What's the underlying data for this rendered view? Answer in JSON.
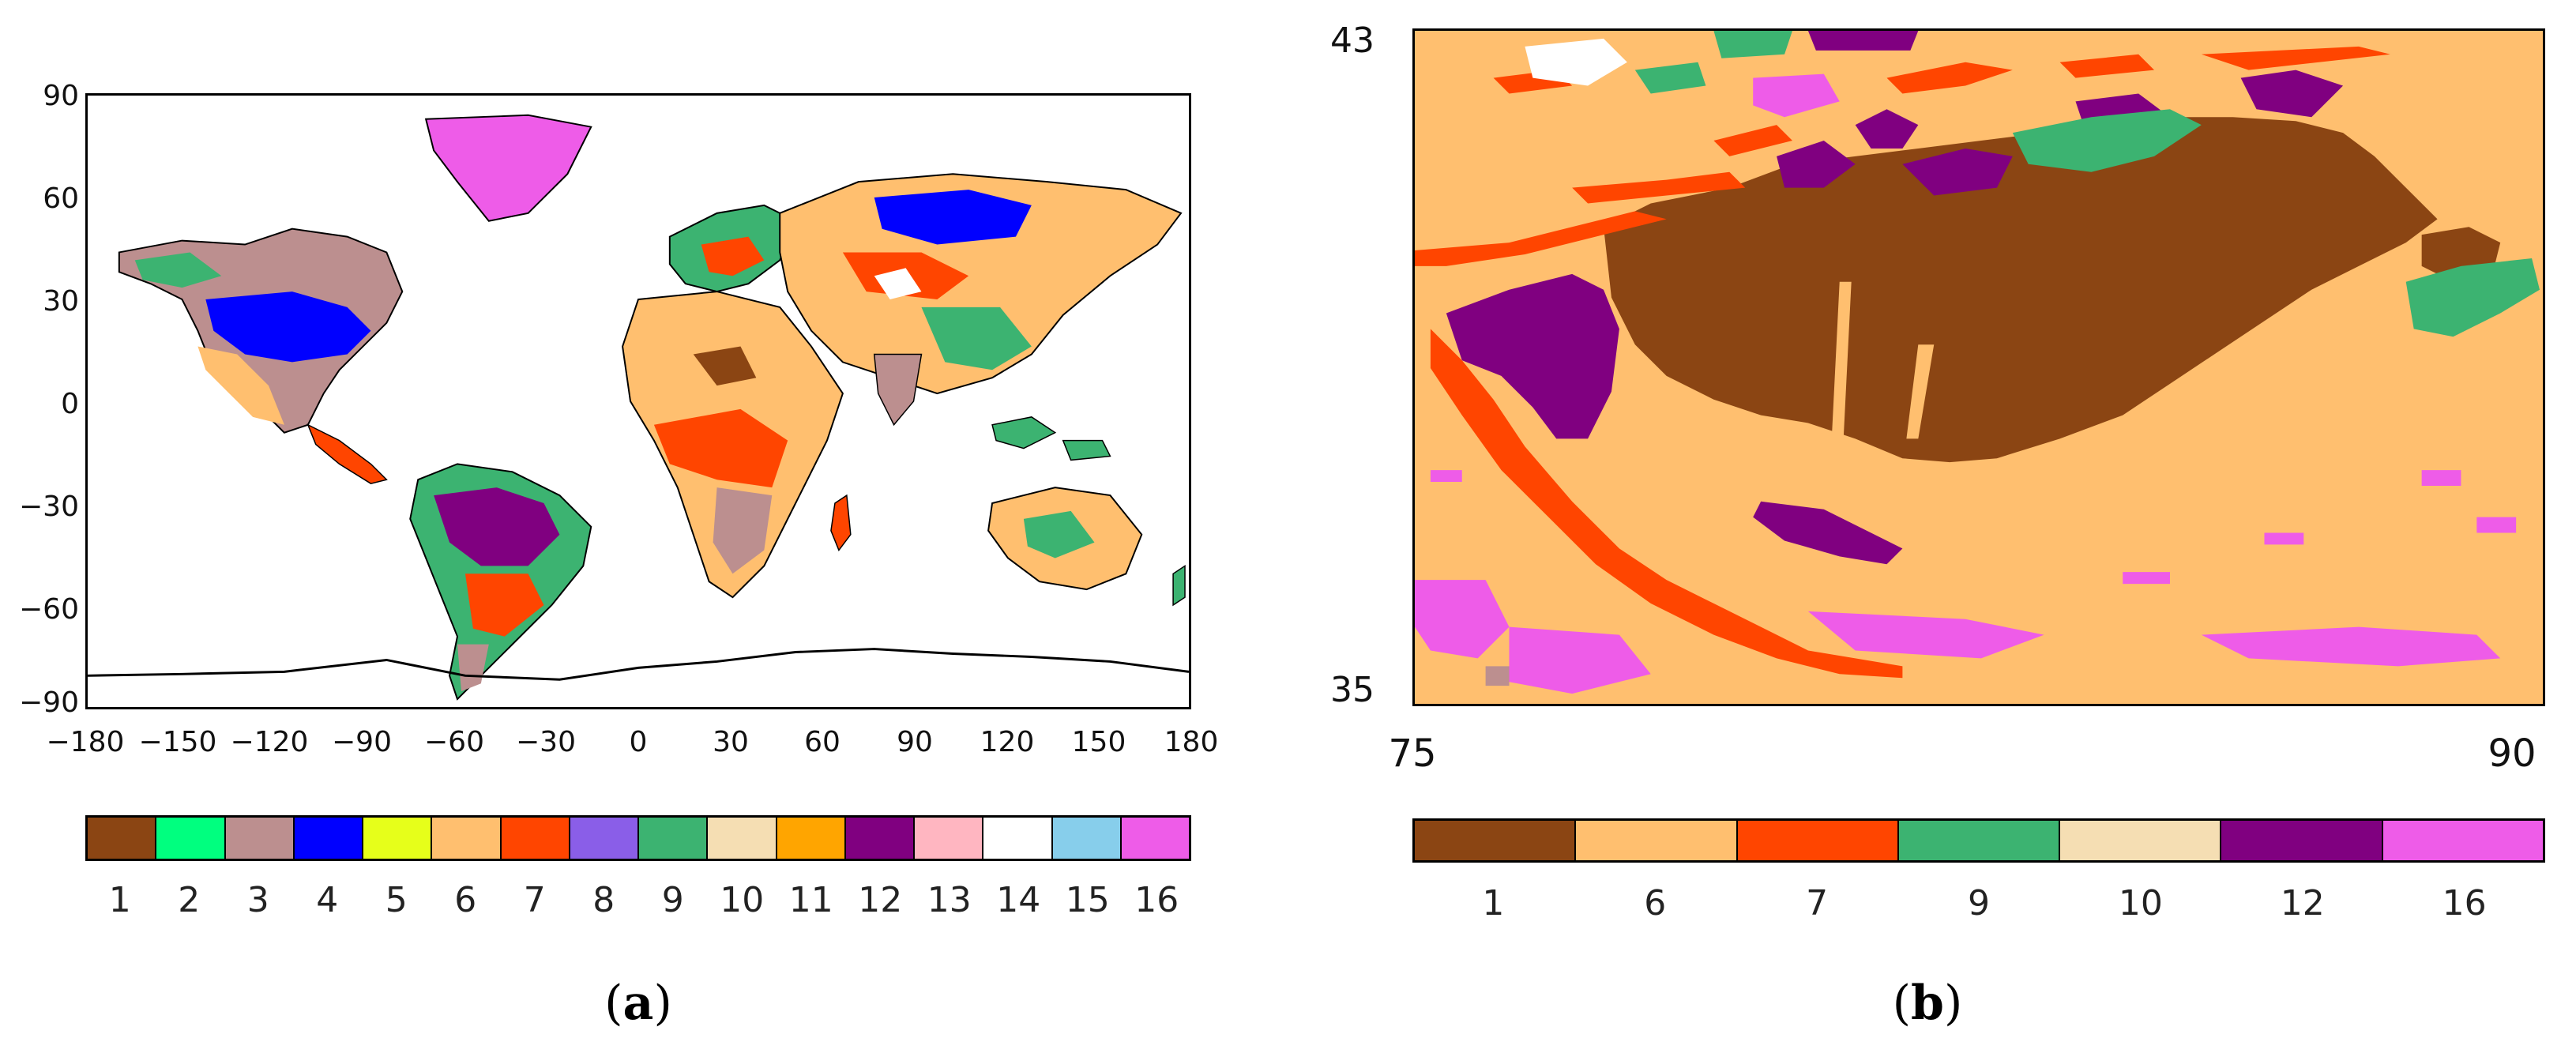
{
  "panels": [
    {
      "id": "a",
      "caption_open": "(",
      "caption_letter": "a",
      "caption_close": ")",
      "y_ticks": [
        "90",
        "60",
        "30",
        "0",
        "−30",
        "−60",
        "−90"
      ],
      "x_ticks": [
        "−180",
        "−150",
        "−120",
        "−90",
        "−60",
        "−30",
        "0",
        "30",
        "60",
        "90",
        "120",
        "150",
        "180"
      ],
      "legend_classes": [
        "1",
        "2",
        "3",
        "4",
        "5",
        "6",
        "7",
        "8",
        "9",
        "10",
        "11",
        "12",
        "13",
        "14",
        "15",
        "16"
      ],
      "legend_colors": [
        "#8B4513",
        "#00FF7F",
        "#BC8F8F",
        "#0000FF",
        "#E6FF1A",
        "#FFBF6F",
        "#FF4500",
        "#8A5EE8",
        "#3CB371",
        "#F5DEB3",
        "#FFA500",
        "#800080",
        "#FFB6C1",
        "#FFFFFF",
        "#87CEEB",
        "#EE5CE8"
      ]
    },
    {
      "id": "b",
      "caption_open": "(",
      "caption_letter": "b",
      "caption_close": ")",
      "y_ticks": [
        "43",
        "35"
      ],
      "x_ticks": [
        "75",
        "90"
      ],
      "legend_classes": [
        "1",
        "6",
        "7",
        "9",
        "10",
        "12",
        "16"
      ],
      "legend_colors": [
        "#8B4513",
        "#FFBF6F",
        "#FF4500",
        "#3CB371",
        "#F5DEB3",
        "#800080",
        "#EE5CE8"
      ]
    }
  ]
}
